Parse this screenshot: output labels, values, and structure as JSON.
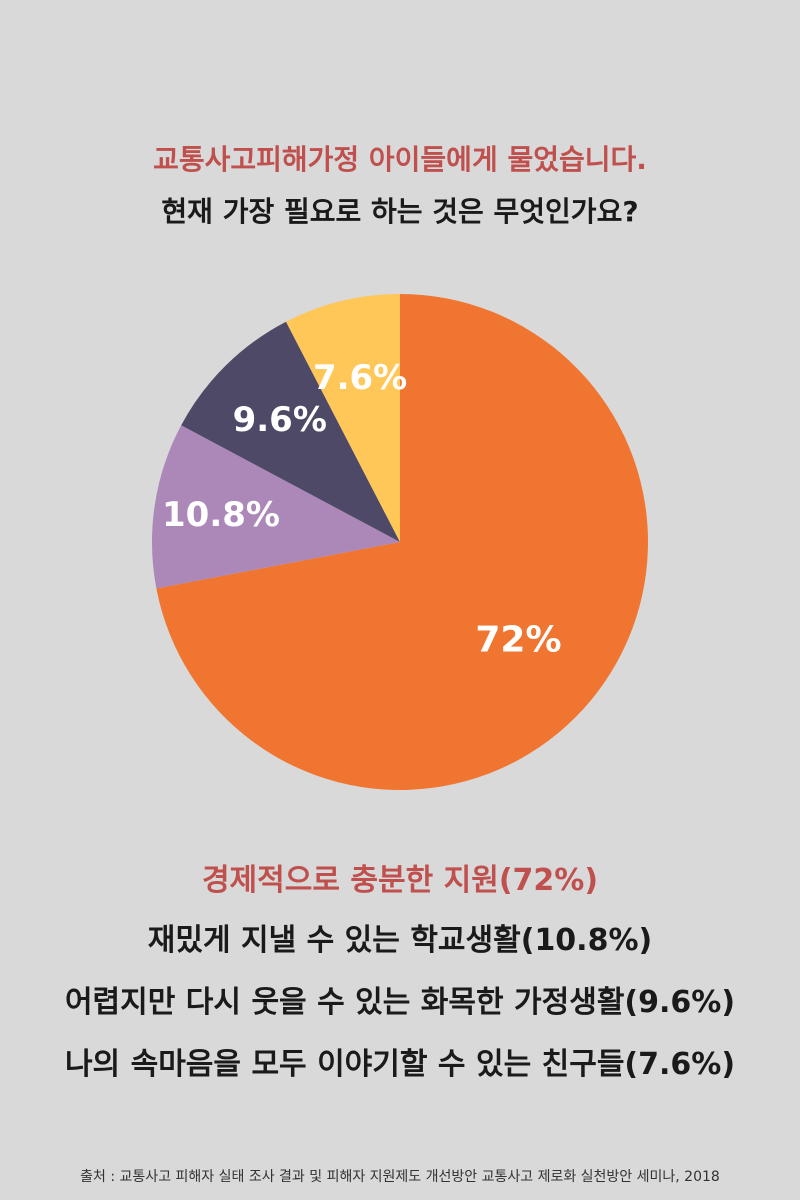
{
  "header": {
    "line1": "교통사고피해가정 아이들에게 물었습니다.",
    "line2": "현재 가장 필요로 하는 것은 무엇인가요?"
  },
  "chart_data": {
    "type": "pie",
    "start_angle_deg": 0,
    "direction": "clockwise",
    "slices": [
      {
        "label": "경제적으로 충분한 지원",
        "value": 72,
        "display": "72%",
        "color": "#f07530"
      },
      {
        "label": "재밌게 지낼 수 있는 학교생활",
        "value": 10.8,
        "display": "10.8%",
        "color": "#ac88b8"
      },
      {
        "label": "어렵지만 다시 웃을 수 있는 화목한 가정생활",
        "value": 9.6,
        "display": "9.6%",
        "color": "#4d4966"
      },
      {
        "label": "나의 속마음을 모두 이야기할 수 있는 친구들",
        "value": 7.6,
        "display": "7.6%",
        "color": "#ffc658"
      }
    ]
  },
  "legend": [
    "경제적으로 충분한 지원(72%)",
    "재밌게 지낼 수 있는 학교생활(10.8%)",
    "어렵지만 다시 웃을 수 있는 화목한 가정생활(9.6%)",
    "나의 속마음을 모두 이야기할 수 있는 친구들(7.6%)"
  ],
  "source": "출처 : 교통사고 피해자 실태 조사 결과 및 피해자 지원제도 개선방안 교통사고 제로화 실천방안 세미나, 2018"
}
